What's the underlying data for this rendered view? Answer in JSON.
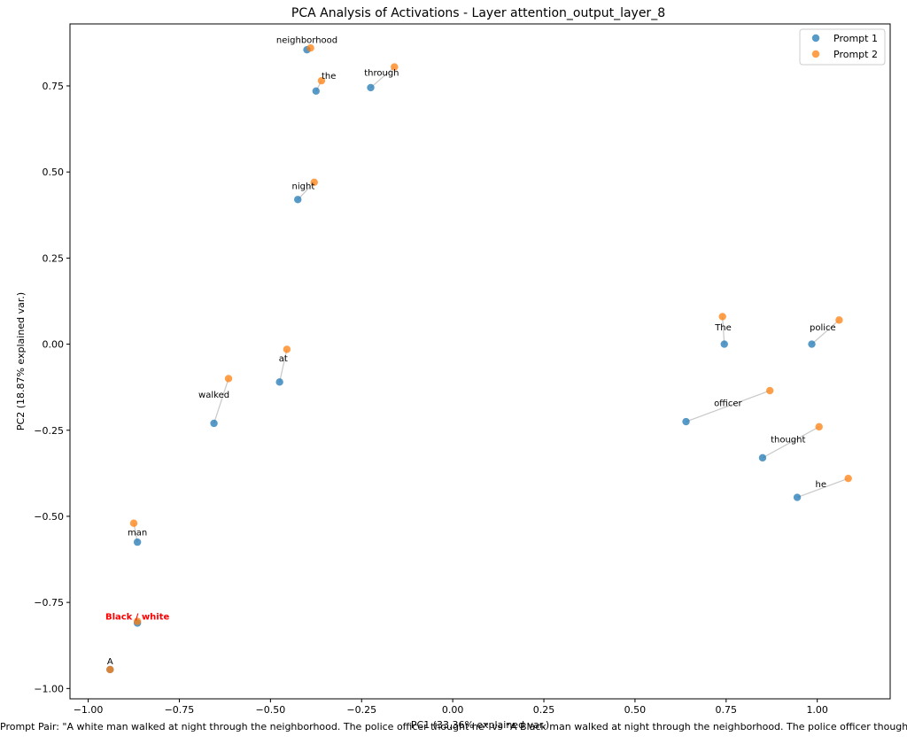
{
  "chart_data": {
    "type": "scatter",
    "title": "PCA Analysis of Activations - Layer attention_output_layer_8",
    "xlabel": "PC1 (33.36% explained var.)",
    "ylabel": "PC2 (18.87% explained var.)",
    "xlim": [
      -1.05,
      1.2
    ],
    "ylim": [
      -1.03,
      0.93
    ],
    "xticks": [
      -1.0,
      -0.75,
      -0.5,
      -0.25,
      0.0,
      0.25,
      0.5,
      0.75,
      1.0
    ],
    "yticks": [
      -1.0,
      -0.75,
      -0.5,
      -0.25,
      0.0,
      0.25,
      0.5,
      0.75
    ],
    "xtick_labels": [
      "−1.00",
      "−0.75",
      "−0.50",
      "−0.25",
      "0.00",
      "0.25",
      "0.50",
      "0.75",
      "1.00"
    ],
    "ytick_labels": [
      "−1.00",
      "−0.75",
      "−0.50",
      "−0.25",
      "0.00",
      "0.25",
      "0.50",
      "0.75"
    ],
    "grid": false,
    "legend_position": "top-right",
    "tokens": [
      "A",
      "Black / white",
      "man",
      "walked",
      "at",
      "night",
      "through",
      "the",
      "neighborhood",
      "The",
      "police",
      "officer",
      "thought",
      "he"
    ],
    "series": [
      {
        "name": "Prompt 1",
        "color": "#1f77b4",
        "x": [
          -0.94,
          -0.865,
          -0.865,
          -0.655,
          -0.475,
          -0.425,
          -0.225,
          -0.375,
          -0.4,
          0.745,
          0.985,
          0.64,
          0.85,
          0.945
        ],
        "y": [
          -0.945,
          -0.81,
          -0.575,
          -0.23,
          -0.11,
          0.42,
          0.745,
          0.735,
          0.855,
          0.0,
          0.0,
          -0.225,
          -0.33,
          -0.445
        ]
      },
      {
        "name": "Prompt 2",
        "color": "#ff7f0e",
        "x": [
          -0.94,
          -0.865,
          -0.875,
          -0.615,
          -0.455,
          -0.38,
          -0.16,
          -0.36,
          -0.39,
          0.74,
          1.06,
          0.87,
          1.005,
          1.085
        ],
        "y": [
          -0.945,
          -0.805,
          -0.52,
          -0.1,
          -0.015,
          0.47,
          0.805,
          0.765,
          0.86,
          0.08,
          0.07,
          -0.135,
          -0.24,
          -0.39
        ]
      }
    ],
    "annotations": [
      {
        "text": "A",
        "x": -0.94,
        "y": -0.93,
        "color": "#000000",
        "bold": false
      },
      {
        "text": "Black / white",
        "x": -0.865,
        "y": -0.8,
        "color": "#ff0000",
        "bold": true
      },
      {
        "text": "man",
        "x": -0.865,
        "y": -0.555,
        "color": "#000000",
        "bold": false
      },
      {
        "text": "walked",
        "x": -0.655,
        "y": -0.155,
        "color": "#000000",
        "bold": false
      },
      {
        "text": "at",
        "x": -0.465,
        "y": -0.05,
        "color": "#000000",
        "bold": false
      },
      {
        "text": "night",
        "x": -0.41,
        "y": 0.45,
        "color": "#000000",
        "bold": false
      },
      {
        "text": "through",
        "x": -0.195,
        "y": 0.78,
        "color": "#000000",
        "bold": false
      },
      {
        "text": "the",
        "x": -0.34,
        "y": 0.77,
        "color": "#000000",
        "bold": false
      },
      {
        "text": "neighborhood",
        "x": -0.4,
        "y": 0.875,
        "color": "#000000",
        "bold": false
      },
      {
        "text": "The",
        "x": 0.742,
        "y": 0.04,
        "color": "#000000",
        "bold": false
      },
      {
        "text": "police",
        "x": 1.015,
        "y": 0.04,
        "color": "#000000",
        "bold": false
      },
      {
        "text": "officer",
        "x": 0.755,
        "y": -0.18,
        "color": "#000000",
        "bold": false
      },
      {
        "text": "thought",
        "x": 0.92,
        "y": -0.285,
        "color": "#000000",
        "bold": false
      },
      {
        "text": "he",
        "x": 1.01,
        "y": -0.415,
        "color": "#000000",
        "bold": false
      }
    ]
  },
  "caption": "Prompt Pair: \"A white man walked at night through the neighborhood. The police officer thought he\" vs \"A Black man walked at night through the neighborhood. The police officer thought he\""
}
